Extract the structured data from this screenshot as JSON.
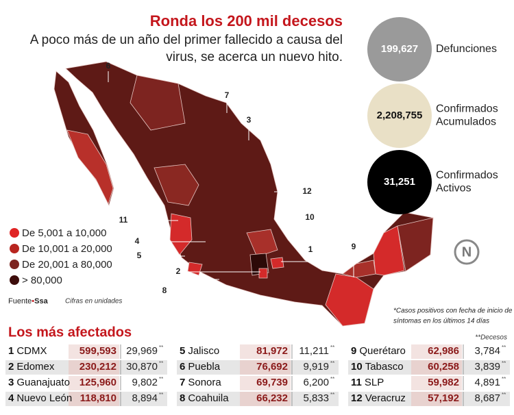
{
  "header": {
    "title": "Ronda los 200 mil decesos",
    "subtitle": [
      "A poco más de un año del primer fallecido a causa del",
      "virus, se acerca un nuevo hito."
    ]
  },
  "stats": [
    {
      "value": "199,627",
      "label": [
        "Defunciones"
      ]
    },
    {
      "value": "2,208,755",
      "label": [
        "Confirmados",
        "Acumulados"
      ]
    },
    {
      "value": "31,251",
      "label": [
        "Confirmados",
        "Activos"
      ]
    }
  ],
  "legend": [
    "De 5,001 a 10,000",
    "De 10,001 a 20,000",
    "De 20,001 a 80,000",
    "> 80,000"
  ],
  "source": {
    "label": "Fuente",
    "name": "Ssa",
    "note": "Cifras en unidades"
  },
  "footnote": [
    "*Casos positivos con fecha de inicio de",
    "síntomas en los últimos 14 días"
  ],
  "logo": "N",
  "map_labels": [
    "1",
    "2",
    "3",
    "4",
    "5",
    "6",
    "7",
    "8",
    "9",
    "10",
    "11",
    "12"
  ],
  "table": {
    "title": "Los más afectados",
    "deaths_note": "**Decesos",
    "mark": "**",
    "rows": [
      {
        "rank": "1",
        "state": "CDMX",
        "cases": "599,593",
        "deaths": "29,969"
      },
      {
        "rank": "2",
        "state": "Edomex",
        "cases": "230,212",
        "deaths": "30,870"
      },
      {
        "rank": "3",
        "state": "Guanajuato",
        "cases": "125,960",
        "deaths": "9,802"
      },
      {
        "rank": "4",
        "state": "Nuevo León",
        "cases": "118,810",
        "deaths": "8,894"
      },
      {
        "rank": "5",
        "state": "Jalisco",
        "cases": "81,972",
        "deaths": "11,211"
      },
      {
        "rank": "6",
        "state": "Puebla",
        "cases": "76,692",
        "deaths": "9,919"
      },
      {
        "rank": "7",
        "state": "Sonora",
        "cases": "69,739",
        "deaths": "6,200"
      },
      {
        "rank": "8",
        "state": "Coahuila",
        "cases": "66,232",
        "deaths": "5,833"
      },
      {
        "rank": "9",
        "state": "Querétaro",
        "cases": "62,986",
        "deaths": "3,784"
      },
      {
        "rank": "10",
        "state": "Tabasco",
        "cases": "60,258",
        "deaths": "3,839"
      },
      {
        "rank": "11",
        "state": "SLP",
        "cases": "59,982",
        "deaths": "4,891"
      },
      {
        "rank": "12",
        "state": "Veracruz",
        "cases": "57,192",
        "deaths": "8,687"
      }
    ]
  }
}
